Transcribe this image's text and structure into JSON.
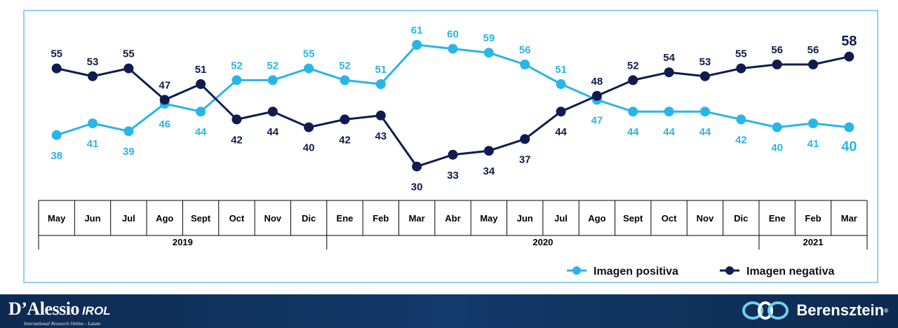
{
  "chart_data": {
    "type": "line",
    "categories": [
      "May",
      "Jun",
      "Jul",
      "Ago",
      "Sept",
      "Oct",
      "Nov",
      "Dic",
      "Ene",
      "Feb",
      "Mar",
      "Abr",
      "May",
      "Jun",
      "Jul",
      "Ago",
      "Sept",
      "Oct",
      "Nov",
      "Dic",
      "Ene",
      "Feb",
      "Mar"
    ],
    "years": [
      {
        "label": "2019",
        "start": 0,
        "end": 7
      },
      {
        "label": "2020",
        "start": 8,
        "end": 19
      },
      {
        "label": "2021",
        "start": 20,
        "end": 22
      }
    ],
    "series": [
      {
        "name": "Imagen positiva",
        "color": "#29b5e8",
        "values": [
          38,
          41,
          39,
          46,
          44,
          52,
          52,
          55,
          52,
          51,
          61,
          60,
          59,
          56,
          51,
          47,
          44,
          44,
          44,
          42,
          40,
          41,
          40
        ]
      },
      {
        "name": "Imagen negativa",
        "color": "#0f1c4d",
        "values": [
          55,
          53,
          55,
          47,
          51,
          42,
          44,
          40,
          42,
          43,
          30,
          33,
          34,
          37,
          44,
          48,
          52,
          54,
          53,
          55,
          56,
          56,
          58
        ]
      }
    ],
    "legend_position": "bottom-right",
    "grid": false
  },
  "footer": {
    "left_brand": "D’Alessio",
    "left_brand_suffix": "IROL",
    "left_tagline": "International Research Online - Latam",
    "right_brand": "Berensztein",
    "right_brand_mark": "®"
  }
}
